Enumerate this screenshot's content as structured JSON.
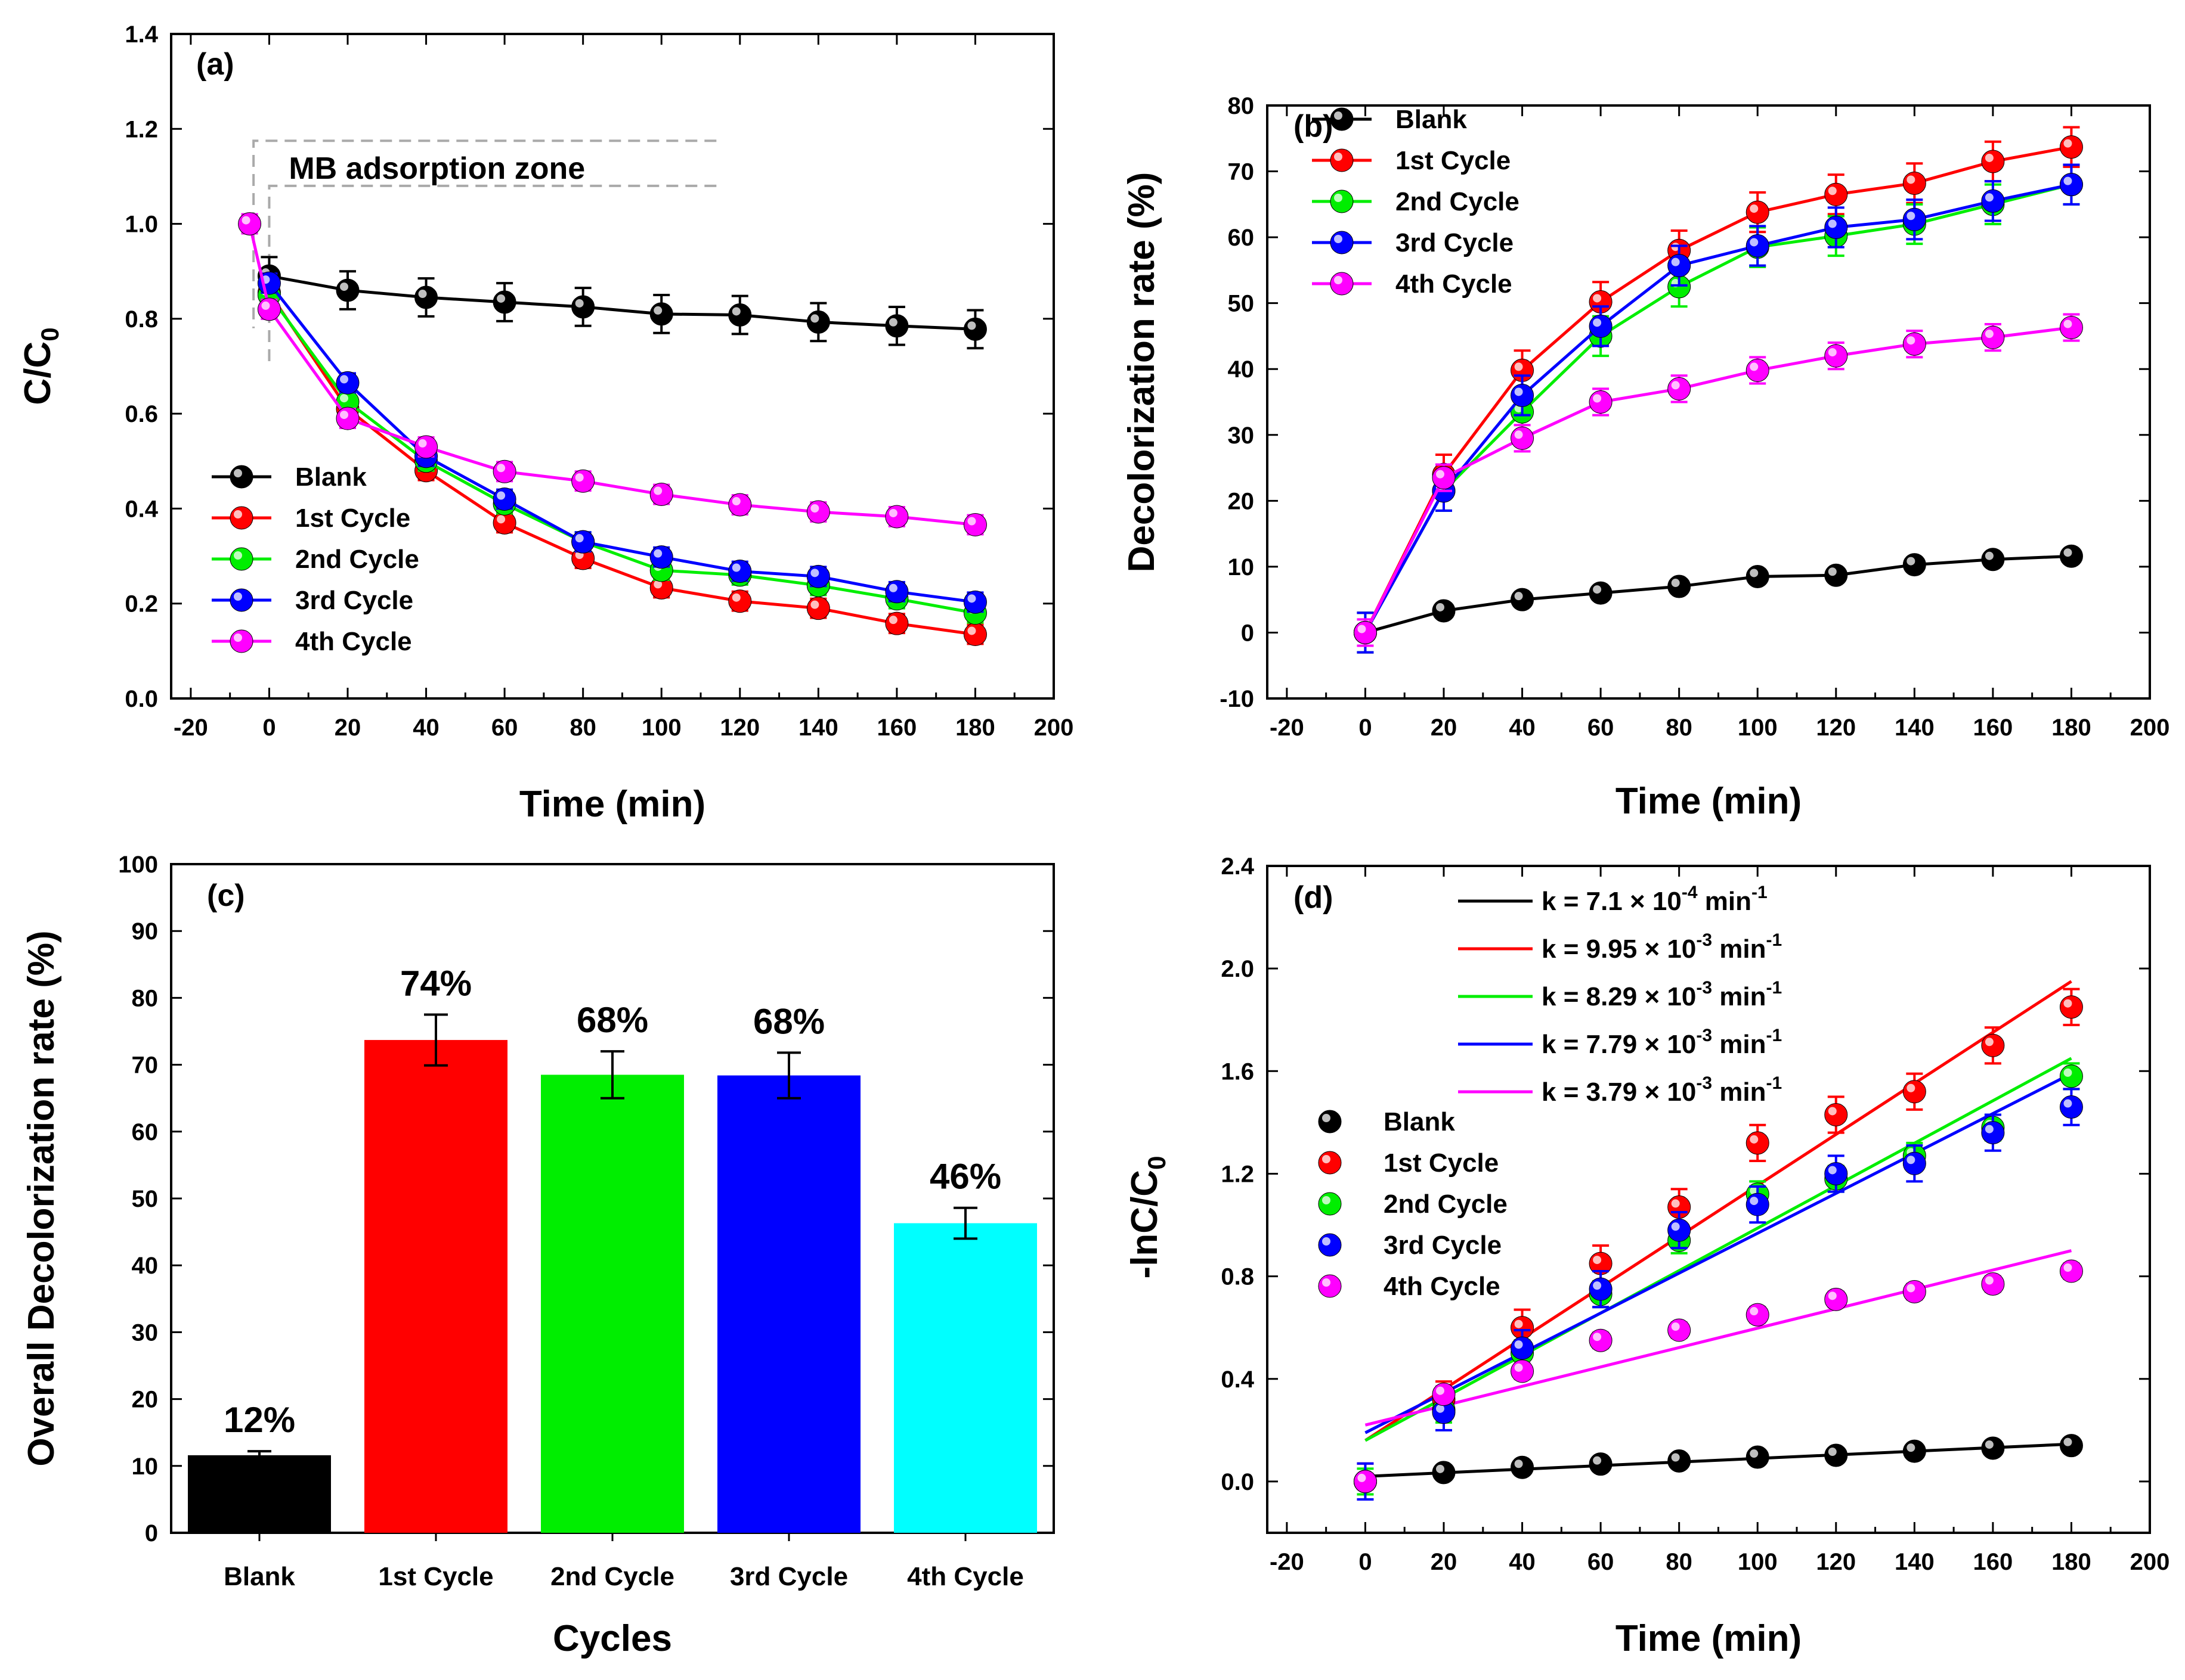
{
  "chart_data": [
    {
      "panel": "(a)",
      "type": "line",
      "xlabel": "Time (min)",
      "ylabel": "C/C",
      "ylabel_sub": "0",
      "xlim": [
        -25,
        200
      ],
      "ylim": [
        0.0,
        1.4
      ],
      "xticks": [
        "-20",
        "0",
        "20",
        "40",
        "60",
        "80",
        "100",
        "120",
        "140",
        "160",
        "180",
        "200"
      ],
      "xtick_values": [
        -20,
        0,
        20,
        40,
        60,
        80,
        100,
        120,
        140,
        160,
        180,
        200
      ],
      "yticks": [
        "0.0",
        "0.2",
        "0.4",
        "0.6",
        "0.8",
        "1.0",
        "1.2",
        "1.4"
      ],
      "ytick_values": [
        0,
        0.2,
        0.4,
        0.6,
        0.8,
        1.0,
        1.2,
        1.4
      ],
      "annotation": "MB adsorption zone",
      "legend_position": "lower-left",
      "series": [
        {
          "name": "Blank",
          "color": "#000000",
          "x": [
            0,
            20,
            40,
            60,
            80,
            100,
            120,
            140,
            160,
            180
          ],
          "values": [
            0.89,
            0.86,
            0.845,
            0.835,
            0.825,
            0.81,
            0.808,
            0.793,
            0.785,
            0.778
          ],
          "err": 0.04
        },
        {
          "name": "1st Cycle",
          "color": "#ff0000",
          "x": [
            0,
            20,
            40,
            60,
            80,
            100,
            120,
            140,
            160,
            180
          ],
          "values": [
            0.855,
            0.61,
            0.48,
            0.37,
            0.295,
            0.233,
            0.205,
            0.19,
            0.158,
            0.135
          ],
          "err": 0.02
        },
        {
          "name": "2nd Cycle",
          "color": "#00ee00",
          "x": [
            0,
            20,
            40,
            60,
            80,
            100,
            120,
            140,
            160,
            180
          ],
          "values": [
            0.85,
            0.625,
            0.5,
            0.41,
            0.33,
            0.27,
            0.26,
            0.238,
            0.21,
            0.18
          ],
          "err": 0.02
        },
        {
          "name": "3rd Cycle",
          "color": "#0000ff",
          "x": [
            0,
            20,
            40,
            60,
            80,
            100,
            120,
            140,
            160,
            180
          ],
          "values": [
            0.875,
            0.665,
            0.51,
            0.42,
            0.33,
            0.298,
            0.268,
            0.257,
            0.225,
            0.203
          ],
          "err": 0.02
        },
        {
          "name": "4th Cycle",
          "color": "#ff00ff",
          "x": [
            -5,
            0,
            20,
            40,
            60,
            80,
            100,
            120,
            140,
            160,
            180
          ],
          "values": [
            1.0,
            0.82,
            0.59,
            0.53,
            0.478,
            0.458,
            0.43,
            0.408,
            0.393,
            0.383,
            0.366
          ],
          "err": 0.02
        }
      ]
    },
    {
      "panel": "(b)",
      "type": "line",
      "xlabel": "Time (min)",
      "ylabel": "Decolorization rate (%)",
      "xlim": [
        -25,
        200
      ],
      "ylim": [
        -10,
        80
      ],
      "xticks": [
        "-20",
        "0",
        "20",
        "40",
        "60",
        "80",
        "100",
        "120",
        "140",
        "160",
        "180",
        "200"
      ],
      "xtick_values": [
        -20,
        0,
        20,
        40,
        60,
        80,
        100,
        120,
        140,
        160,
        180,
        200
      ],
      "yticks": [
        "-10",
        "0",
        "10",
        "20",
        "30",
        "40",
        "50",
        "60",
        "70",
        "80"
      ],
      "ytick_values": [
        -10,
        0,
        10,
        20,
        30,
        40,
        50,
        60,
        70,
        80
      ],
      "legend_position": "top-left",
      "series": [
        {
          "name": "Blank",
          "color": "#000000",
          "x": [
            0,
            20,
            40,
            60,
            80,
            100,
            120,
            140,
            160,
            180
          ],
          "values": [
            0,
            3.3,
            5,
            6,
            7,
            8.5,
            8.7,
            10.3,
            11.1,
            11.6
          ],
          "err": 1
        },
        {
          "name": "1st Cycle",
          "color": "#ff0000",
          "x": [
            0,
            20,
            40,
            60,
            80,
            100,
            120,
            140,
            160,
            180
          ],
          "values": [
            0,
            24,
            39.8,
            50.2,
            58,
            63.8,
            66.5,
            68.2,
            71.5,
            73.7
          ],
          "err": 3
        },
        {
          "name": "2nd Cycle",
          "color": "#00ee00",
          "x": [
            0,
            20,
            40,
            60,
            80,
            100,
            120,
            140,
            160,
            180
          ],
          "values": [
            0,
            21.5,
            33.5,
            45,
            52.5,
            58.5,
            60.2,
            62,
            65,
            68
          ],
          "err": 3
        },
        {
          "name": "3rd Cycle",
          "color": "#0000ff",
          "x": [
            0,
            20,
            40,
            60,
            80,
            100,
            120,
            140,
            160,
            180
          ],
          "values": [
            0,
            21.5,
            36,
            46.5,
            55.7,
            58.7,
            61.5,
            62.7,
            65.5,
            68
          ],
          "err": 3
        },
        {
          "name": "4th Cycle",
          "color": "#ff00ff",
          "x": [
            0,
            20,
            40,
            60,
            80,
            100,
            120,
            140,
            160,
            180
          ],
          "values": [
            0,
            23.5,
            29.5,
            35,
            37,
            39.8,
            42,
            43.8,
            44.8,
            46.3
          ],
          "err": 2
        }
      ]
    },
    {
      "panel": "(c)",
      "type": "bar",
      "xlabel": "Cycles",
      "ylabel": "Overall Decolorization rate (%)",
      "ylim": [
        0,
        100
      ],
      "yticks": [
        "0",
        "10",
        "20",
        "30",
        "40",
        "50",
        "60",
        "70",
        "80",
        "90",
        "100"
      ],
      "ytick_values": [
        0,
        10,
        20,
        30,
        40,
        50,
        60,
        70,
        80,
        90,
        100
      ],
      "categories": [
        "Blank",
        "1st Cycle",
        "2nd Cycle",
        "3rd Cycle",
        "4th Cycle"
      ],
      "values": [
        11.6,
        73.7,
        68.5,
        68.4,
        46.3
      ],
      "errors": [
        0.6,
        3.8,
        3.5,
        3.4,
        2.3
      ],
      "labels": [
        "12%",
        "74%",
        "68%",
        "68%",
        "46%"
      ],
      "colors": [
        "#000000",
        "#ff0000",
        "#00ee00",
        "#0000ff",
        "#00ffff"
      ]
    },
    {
      "panel": "(d)",
      "type": "scatter",
      "xlabel": "Time (min)",
      "ylabel": "-lnC/C",
      "ylabel_sub": "0",
      "xlim": [
        -25,
        200
      ],
      "ylim": [
        -0.2,
        2.4
      ],
      "xticks": [
        "-20",
        "0",
        "20",
        "40",
        "60",
        "80",
        "100",
        "120",
        "140",
        "160",
        "180",
        "200"
      ],
      "xtick_values": [
        -20,
        0,
        20,
        40,
        60,
        80,
        100,
        120,
        140,
        160,
        180,
        200
      ],
      "yticks": [
        "0.0",
        "0.4",
        "0.8",
        "1.2",
        "1.6",
        "2.0",
        "2.4"
      ],
      "ytick_values": [
        0,
        0.4,
        0.8,
        1.2,
        1.6,
        2.0,
        2.4
      ],
      "legend_position": "left",
      "fits": [
        {
          "label_pre": "k = 7.1 × 10",
          "exp": "-4",
          "label_post": " min",
          "unit_exp": "-1",
          "color": "#000000",
          "x": [
            0,
            180
          ],
          "y": [
            0.02,
            0.146
          ]
        },
        {
          "label_pre": "k = 9.95 × 10",
          "exp": "-3",
          "label_post": " min",
          "unit_exp": "-1",
          "color": "#ff0000",
          "x": [
            0,
            180
          ],
          "y": [
            0.16,
            1.95
          ]
        },
        {
          "label_pre": "k = 8.29 × 10",
          "exp": "-3",
          "label_post": " min",
          "unit_exp": "-1",
          "color": "#00ee00",
          "x": [
            0,
            180
          ],
          "y": [
            0.16,
            1.65
          ]
        },
        {
          "label_pre": "k = 7.79 × 10",
          "exp": "-3",
          "label_post": " min",
          "unit_exp": "-1",
          "color": "#0000ff",
          "x": [
            0,
            180
          ],
          "y": [
            0.19,
            1.59
          ]
        },
        {
          "label_pre": "k = 3.79 × 10",
          "exp": "-3",
          "label_post": " min",
          "unit_exp": "-1",
          "color": "#ff00ff",
          "x": [
            0,
            180
          ],
          "y": [
            0.22,
            0.9
          ]
        }
      ],
      "series": [
        {
          "name": "Blank",
          "color": "#000000",
          "x": [
            0,
            20,
            40,
            60,
            80,
            100,
            120,
            140,
            160,
            180
          ],
          "values": [
            0,
            0.035,
            0.055,
            0.068,
            0.08,
            0.095,
            0.102,
            0.118,
            0.13,
            0.14
          ],
          "err": 0
        },
        {
          "name": "1st Cycle",
          "color": "#ff0000",
          "x": [
            0,
            20,
            40,
            60,
            80,
            100,
            120,
            140,
            160,
            180
          ],
          "values": [
            0,
            0.32,
            0.6,
            0.85,
            1.07,
            1.32,
            1.43,
            1.52,
            1.7,
            1.85
          ],
          "err": 0.07
        },
        {
          "name": "2nd Cycle",
          "color": "#00ee00",
          "x": [
            0,
            20,
            40,
            60,
            80,
            100,
            120,
            140,
            160,
            180
          ],
          "values": [
            0,
            0.28,
            0.5,
            0.73,
            0.94,
            1.12,
            1.18,
            1.27,
            1.38,
            1.58
          ],
          "err": 0.05
        },
        {
          "name": "3rd Cycle",
          "color": "#0000ff",
          "x": [
            0,
            20,
            40,
            60,
            80,
            100,
            120,
            140,
            160,
            180
          ],
          "values": [
            0,
            0.27,
            0.52,
            0.75,
            0.98,
            1.08,
            1.2,
            1.24,
            1.36,
            1.46
          ],
          "err": 0.07
        },
        {
          "name": "4th Cycle",
          "color": "#ff00ff",
          "x": [
            0,
            20,
            40,
            60,
            80,
            100,
            120,
            140,
            160,
            180
          ],
          "values": [
            0,
            0.34,
            0.43,
            0.55,
            0.59,
            0.65,
            0.71,
            0.74,
            0.77,
            0.82
          ],
          "err": 0.03
        }
      ]
    }
  ]
}
